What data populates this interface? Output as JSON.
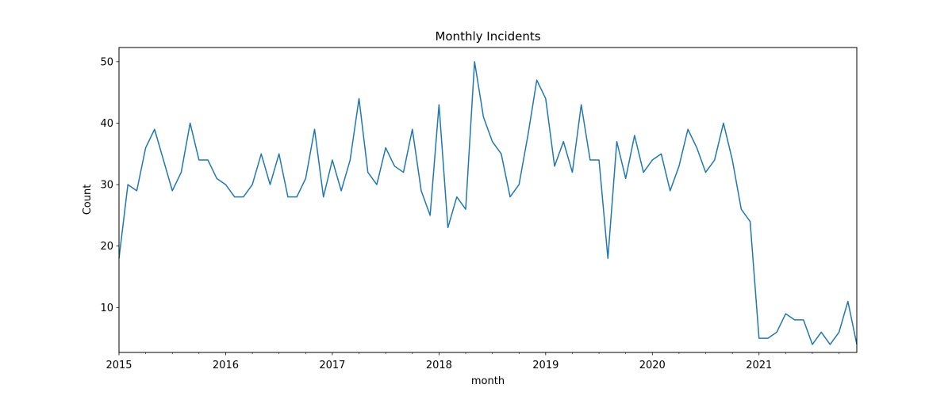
{
  "chart_data": {
    "type": "line",
    "title": "Monthly Incidents",
    "xlabel": "month",
    "ylabel": "Count",
    "x_start": "2015-01",
    "x_end": "2021-12",
    "x_ticks": [
      "2015",
      "2016",
      "2017",
      "2018",
      "2019",
      "2020",
      "2021"
    ],
    "y_ticks": [
      10,
      20,
      30,
      40,
      50
    ],
    "ylim": [
      2.7,
      52.3
    ],
    "grid": false,
    "legend": "none",
    "series": [
      {
        "color": "#1f77b4",
        "points": [
          [
            "2015-01",
            18
          ],
          [
            "2015-02",
            30
          ],
          [
            "2015-03",
            29
          ],
          [
            "2015-04",
            36
          ],
          [
            "2015-05",
            39
          ],
          [
            "2015-06",
            34
          ],
          [
            "2015-07",
            29
          ],
          [
            "2015-08",
            32
          ],
          [
            "2015-09",
            40
          ],
          [
            "2015-10",
            34
          ],
          [
            "2015-11",
            34
          ],
          [
            "2015-12",
            31
          ],
          [
            "2016-01",
            30
          ],
          [
            "2016-02",
            28
          ],
          [
            "2016-03",
            28
          ],
          [
            "2016-04",
            30
          ],
          [
            "2016-05",
            35
          ],
          [
            "2016-06",
            30
          ],
          [
            "2016-07",
            35
          ],
          [
            "2016-08",
            28
          ],
          [
            "2016-09",
            28
          ],
          [
            "2016-10",
            31
          ],
          [
            "2016-11",
            39
          ],
          [
            "2016-12",
            28
          ],
          [
            "2017-01",
            34
          ],
          [
            "2017-02",
            29
          ],
          [
            "2017-03",
            34
          ],
          [
            "2017-04",
            44
          ],
          [
            "2017-05",
            32
          ],
          [
            "2017-06",
            30
          ],
          [
            "2017-07",
            36
          ],
          [
            "2017-08",
            33
          ],
          [
            "2017-09",
            32
          ],
          [
            "2017-10",
            39
          ],
          [
            "2017-11",
            29
          ],
          [
            "2017-12",
            25
          ],
          [
            "2018-01",
            43
          ],
          [
            "2018-02",
            23
          ],
          [
            "2018-03",
            28
          ],
          [
            "2018-04",
            26
          ],
          [
            "2018-05",
            50
          ],
          [
            "2018-06",
            41
          ],
          [
            "2018-07",
            37
          ],
          [
            "2018-08",
            35
          ],
          [
            "2018-09",
            28
          ],
          [
            "2018-10",
            30
          ],
          [
            "2018-11",
            38
          ],
          [
            "2018-12",
            47
          ],
          [
            "2019-01",
            44
          ],
          [
            "2019-02",
            33
          ],
          [
            "2019-03",
            37
          ],
          [
            "2019-04",
            32
          ],
          [
            "2019-05",
            43
          ],
          [
            "2019-06",
            34
          ],
          [
            "2019-07",
            34
          ],
          [
            "2019-08",
            18
          ],
          [
            "2019-09",
            37
          ],
          [
            "2019-10",
            31
          ],
          [
            "2019-11",
            38
          ],
          [
            "2019-12",
            32
          ],
          [
            "2020-01",
            34
          ],
          [
            "2020-02",
            35
          ],
          [
            "2020-03",
            29
          ],
          [
            "2020-04",
            33
          ],
          [
            "2020-05",
            39
          ],
          [
            "2020-06",
            36
          ],
          [
            "2020-07",
            32
          ],
          [
            "2020-08",
            34
          ],
          [
            "2020-09",
            40
          ],
          [
            "2020-10",
            34
          ],
          [
            "2020-11",
            26
          ],
          [
            "2020-12",
            24
          ],
          [
            "2021-01",
            5
          ],
          [
            "2021-02",
            5
          ],
          [
            "2021-03",
            6
          ],
          [
            "2021-04",
            9
          ],
          [
            "2021-05",
            8
          ],
          [
            "2021-06",
            8
          ],
          [
            "2021-07",
            4
          ],
          [
            "2021-08",
            6
          ],
          [
            "2021-09",
            4
          ],
          [
            "2021-10",
            6
          ],
          [
            "2021-11",
            11
          ],
          [
            "2021-12",
            4
          ]
        ]
      }
    ]
  }
}
